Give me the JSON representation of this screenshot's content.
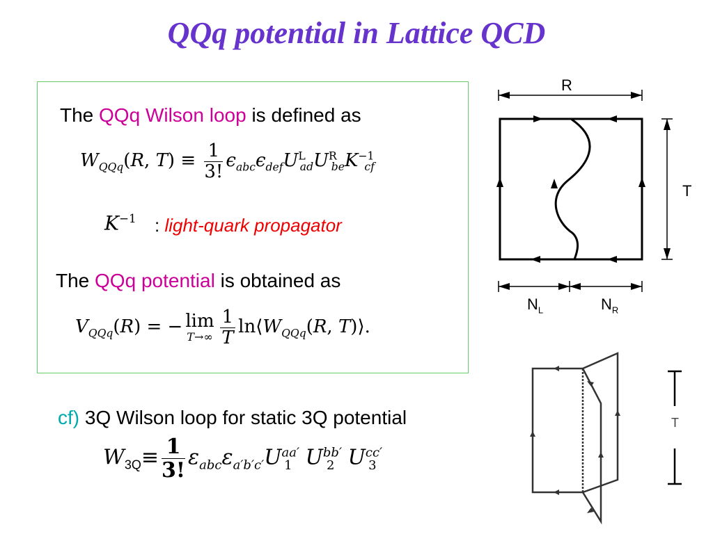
{
  "title": "QQq potential in Lattice QCD",
  "box": {
    "line1": {
      "pre": "The ",
      "highlight": "QQq Wilson loop",
      "post": " is defined as"
    },
    "kinv_sep": " : ",
    "kinv_desc": "light-quark propagator",
    "line2": {
      "pre": "The ",
      "highlight": "QQq potential",
      "post": " is obtained as"
    }
  },
  "cf": {
    "prefix": "cf)",
    "text": " 3Q Wilson loop for static 3Q potential"
  },
  "diagram": {
    "label_R": "R",
    "label_T": "T",
    "label_NL_main": "N",
    "label_NL_sub": "L",
    "label_NR_main": "N",
    "label_NR_sub": "R"
  },
  "diagram2": {
    "label_T": "T"
  },
  "colors": {
    "title": "#6633cc",
    "highlight": "#cc0099",
    "red_text": "#ee0000",
    "cf_prefix": "#00aaaa",
    "box_border": "#66cc66"
  }
}
